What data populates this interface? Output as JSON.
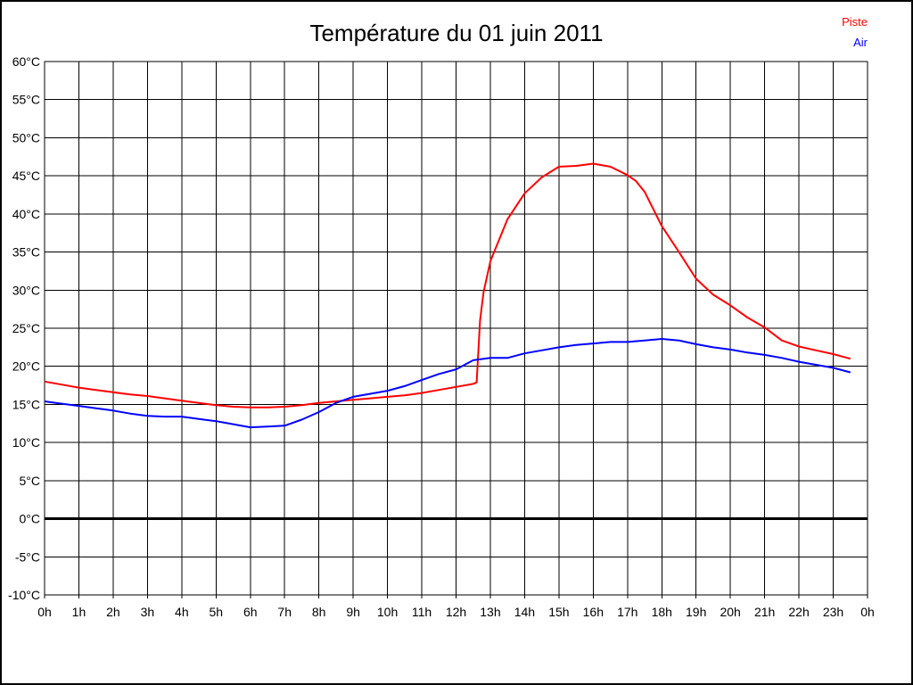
{
  "window": {
    "background": "#ffffff",
    "border_color": "#000000"
  },
  "chart_data": {
    "type": "line",
    "title": "Température du 01 juin 2011",
    "xlabel": "",
    "ylabel": "",
    "x_unit": "h",
    "y_unit": "°C",
    "xlim": [
      0,
      24
    ],
    "ylim": [
      -10,
      60
    ],
    "grid": true,
    "grid_color": "#000000",
    "text_color": "#000000",
    "x_tick_labels": [
      "0h",
      "1h",
      "2h",
      "3h",
      "4h",
      "5h",
      "6h",
      "7h",
      "8h",
      "9h",
      "10h",
      "11h",
      "12h",
      "13h",
      "14h",
      "15h",
      "16h",
      "17h",
      "18h",
      "19h",
      "20h",
      "21h",
      "22h",
      "23h",
      "0h"
    ],
    "y_tick_values": [
      60,
      55,
      50,
      45,
      40,
      35,
      30,
      25,
      20,
      15,
      10,
      5,
      0,
      -5,
      -10
    ],
    "y_tick_labels": [
      "60°C",
      "55°C",
      "50°C",
      "45°C",
      "40°C",
      "35°C",
      "30°C",
      "25°C",
      "20°C",
      "15°C",
      "10°C",
      "5°C",
      "0°C",
      "-5°C",
      "-10°C"
    ],
    "zero_line": {
      "value": 0,
      "color": "#000000",
      "width": 3
    },
    "legend": {
      "position": "top-right",
      "entries": [
        {
          "label": "Piste",
          "color": "#ff0000"
        },
        {
          "label": "Air",
          "color": "#0000ff"
        }
      ]
    },
    "series": [
      {
        "name": "Piste",
        "color": "#ff0000",
        "points": [
          [
            0,
            18.0
          ],
          [
            0.5,
            17.6
          ],
          [
            1,
            17.2
          ],
          [
            1.5,
            16.9
          ],
          [
            2,
            16.6
          ],
          [
            2.5,
            16.3
          ],
          [
            3,
            16.1
          ],
          [
            3.5,
            15.8
          ],
          [
            4,
            15.5
          ],
          [
            4.5,
            15.2
          ],
          [
            5,
            14.9
          ],
          [
            5.5,
            14.7
          ],
          [
            6,
            14.6
          ],
          [
            6.5,
            14.6
          ],
          [
            7,
            14.7
          ],
          [
            7.5,
            14.9
          ],
          [
            8,
            15.2
          ],
          [
            8.5,
            15.4
          ],
          [
            9,
            15.6
          ],
          [
            9.5,
            15.8
          ],
          [
            10,
            16.0
          ],
          [
            10.5,
            16.2
          ],
          [
            11,
            16.5
          ],
          [
            11.5,
            16.9
          ],
          [
            12,
            17.3
          ],
          [
            12.5,
            17.7
          ],
          [
            12.6,
            17.9
          ],
          [
            12.7,
            26.0
          ],
          [
            12.8,
            29.7
          ],
          [
            13,
            33.8
          ],
          [
            13.5,
            39.3
          ],
          [
            14,
            42.7
          ],
          [
            14.5,
            44.8
          ],
          [
            15,
            46.2
          ],
          [
            15.5,
            46.3
          ],
          [
            16,
            46.6
          ],
          [
            16.5,
            46.2
          ],
          [
            17,
            45.1
          ],
          [
            17.25,
            44.3
          ],
          [
            17.5,
            42.9
          ],
          [
            18,
            38.4
          ],
          [
            18.5,
            35.0
          ],
          [
            19,
            31.5
          ],
          [
            19.5,
            29.4
          ],
          [
            20,
            28.0
          ],
          [
            20.5,
            26.4
          ],
          [
            21,
            25.1
          ],
          [
            21.5,
            23.4
          ],
          [
            22,
            22.6
          ],
          [
            22.5,
            22.1
          ],
          [
            23,
            21.6
          ],
          [
            23.5,
            21.0
          ]
        ]
      },
      {
        "name": "Air",
        "color": "#0000ff",
        "points": [
          [
            0,
            15.4
          ],
          [
            0.5,
            15.1
          ],
          [
            1,
            14.8
          ],
          [
            1.5,
            14.5
          ],
          [
            2,
            14.2
          ],
          [
            2.5,
            13.8
          ],
          [
            3,
            13.5
          ],
          [
            3.5,
            13.4
          ],
          [
            4,
            13.4
          ],
          [
            4.5,
            13.1
          ],
          [
            5,
            12.8
          ],
          [
            5.5,
            12.4
          ],
          [
            6,
            12.0
          ],
          [
            6.5,
            12.1
          ],
          [
            7,
            12.2
          ],
          [
            7.5,
            13.0
          ],
          [
            8,
            14.0
          ],
          [
            8.5,
            15.2
          ],
          [
            9,
            16.0
          ],
          [
            9.5,
            16.4
          ],
          [
            10,
            16.8
          ],
          [
            10.5,
            17.4
          ],
          [
            11,
            18.2
          ],
          [
            11.5,
            19.0
          ],
          [
            12,
            19.6
          ],
          [
            12.5,
            20.8
          ],
          [
            13,
            21.1
          ],
          [
            13.5,
            21.1
          ],
          [
            14,
            21.7
          ],
          [
            14.5,
            22.1
          ],
          [
            15,
            22.5
          ],
          [
            15.5,
            22.8
          ],
          [
            16,
            23.0
          ],
          [
            16.5,
            23.2
          ],
          [
            17,
            23.2
          ],
          [
            17.5,
            23.4
          ],
          [
            18,
            23.6
          ],
          [
            18.5,
            23.4
          ],
          [
            19,
            22.9
          ],
          [
            19.5,
            22.5
          ],
          [
            20,
            22.2
          ],
          [
            20.5,
            21.8
          ],
          [
            21,
            21.5
          ],
          [
            21.5,
            21.1
          ],
          [
            22,
            20.6
          ],
          [
            22.5,
            20.2
          ],
          [
            23,
            19.8
          ],
          [
            23.5,
            19.2
          ]
        ]
      }
    ]
  }
}
